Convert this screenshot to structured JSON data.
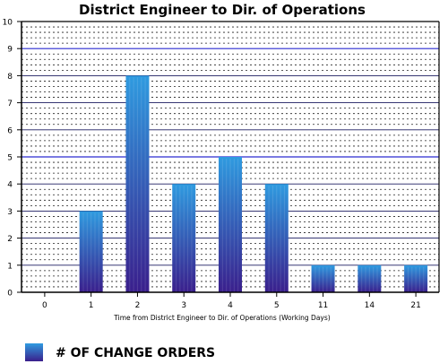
{
  "chart_data": {
    "type": "bar",
    "title": "District Engineer to Dir. of Operations",
    "xlabel": "Time from District Engineer to Dir. of Operations  (Working Days)",
    "ylabel": "",
    "categories": [
      "0",
      "1",
      "2",
      "3",
      "4",
      "5",
      "11",
      "14",
      "21"
    ],
    "series": [
      {
        "name": "# OF CHANGE ORDERS",
        "values": [
          0,
          3,
          8,
          4,
          5,
          4,
          1,
          1,
          1
        ]
      }
    ],
    "ylim": [
      0,
      10
    ],
    "yticks": [
      0,
      1,
      2,
      3,
      4,
      5,
      6,
      7,
      8,
      9,
      10
    ],
    "grid": true,
    "legend_position": "bottom-left",
    "colors": {
      "bar_top": "#2f9be0",
      "bar_bottom": "#3a1f8c",
      "major_grid": "#2a2ad0",
      "minor_grid": "#222222",
      "axis": "#000000",
      "text": "#000000"
    }
  }
}
